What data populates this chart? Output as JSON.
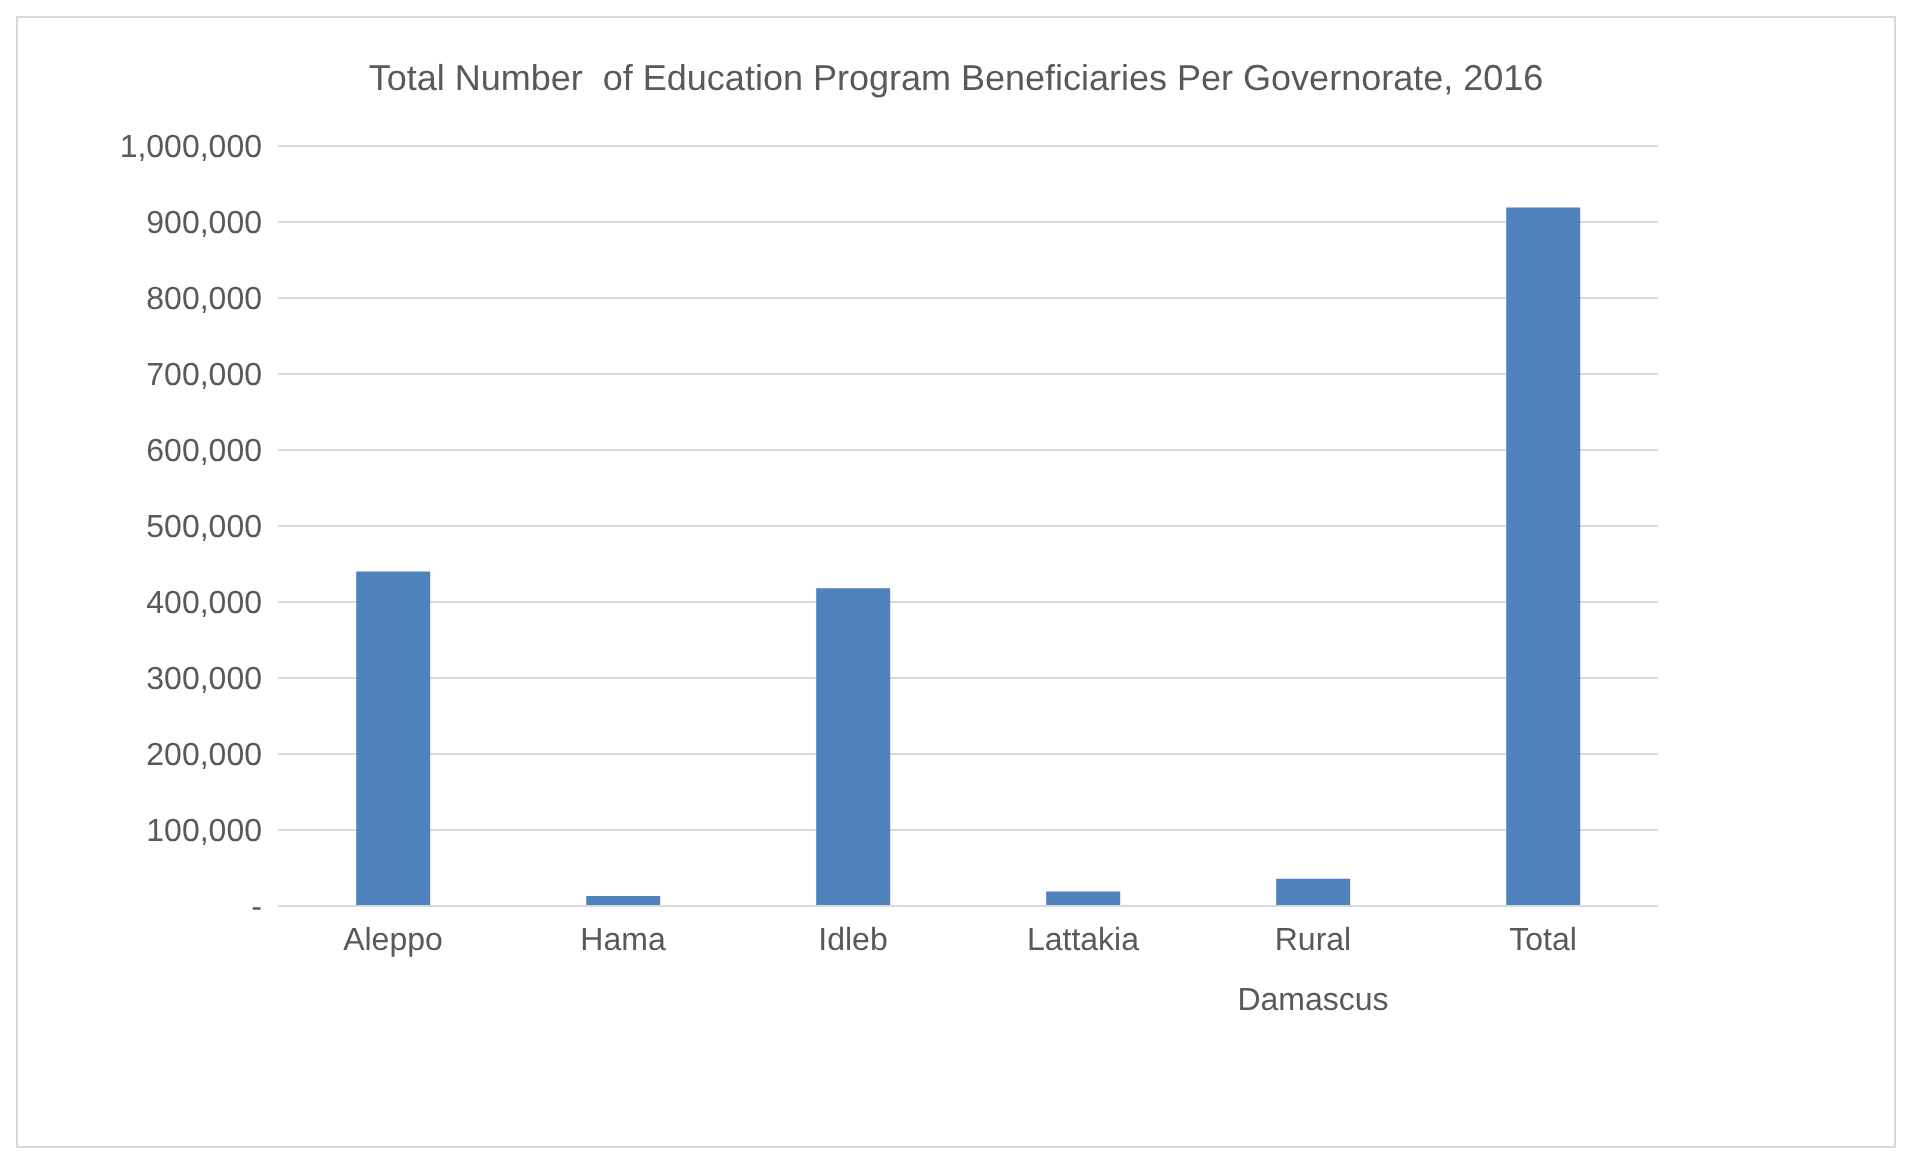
{
  "chart_data": {
    "type": "bar",
    "title": "Total Number  of Education Program Beneficiaries Per Governorate, 2016",
    "categories": [
      "Aleppo",
      "Hama",
      "Idleb",
      "Lattakia",
      "Rural Damascus",
      "Total"
    ],
    "values": [
      440000,
      13000,
      418000,
      19000,
      36000,
      919000
    ],
    "color": "#4f81bd",
    "ylim": [
      0,
      1000000
    ],
    "yticks": [
      {
        "value": 0,
        "label": "-"
      },
      {
        "value": 100000,
        "label": "100,000"
      },
      {
        "value": 200000,
        "label": "200,000"
      },
      {
        "value": 300000,
        "label": "300,000"
      },
      {
        "value": 400000,
        "label": "400,000"
      },
      {
        "value": 500000,
        "label": "500,000"
      },
      {
        "value": 600000,
        "label": "600,000"
      },
      {
        "value": 700000,
        "label": "700,000"
      },
      {
        "value": 800000,
        "label": "800,000"
      },
      {
        "value": 900000,
        "label": "900,000"
      },
      {
        "value": 1000000,
        "label": "1,000,000"
      }
    ],
    "grid": "y"
  }
}
